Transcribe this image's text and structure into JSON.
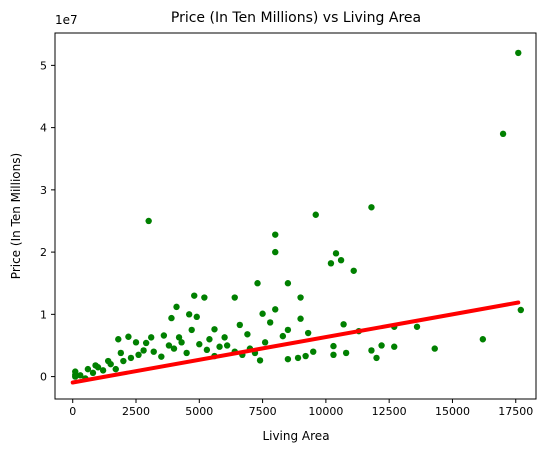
{
  "chart_data": {
    "type": "scatter",
    "title": "Price (In Ten Millions) vs Living Area",
    "xlabel": "Living Area",
    "ylabel": "Price (In Ten Millions)",
    "y_offset_label": "1e7",
    "xlim": [
      -700,
      18300
    ],
    "ylim": [
      -3.6,
      55.2
    ],
    "y_scale_note": "y values in units of 1e7",
    "xticks": [
      0,
      2500,
      5000,
      7500,
      10000,
      12500,
      15000,
      17500
    ],
    "xtick_labels": [
      "0",
      "2500",
      "5000",
      "7500",
      "10000",
      "12500",
      "15000",
      "17500"
    ],
    "yticks": [
      0,
      10,
      20,
      30,
      40,
      50
    ],
    "ytick_labels": [
      "0",
      "1",
      "2",
      "3",
      "4",
      "5"
    ],
    "grid": false,
    "colors": {
      "points": "#008000",
      "fit_line": "#ff0000"
    },
    "fit_line": {
      "x": [
        0,
        17600
      ],
      "y": [
        -0.95,
        11.9
      ]
    },
    "points": [
      [
        17600,
        52.0
      ],
      [
        17000,
        39.0
      ],
      [
        11800,
        27.2
      ],
      [
        9600,
        26.0
      ],
      [
        3000,
        25.0
      ],
      [
        8000,
        22.8
      ],
      [
        8000,
        20.0
      ],
      [
        10400,
        19.8
      ],
      [
        10200,
        18.2
      ],
      [
        10600,
        18.7
      ],
      [
        11100,
        17.0
      ],
      [
        7300,
        15.0
      ],
      [
        8500,
        15.0
      ],
      [
        4800,
        13.0
      ],
      [
        5200,
        12.7
      ],
      [
        6400,
        12.7
      ],
      [
        9000,
        12.7
      ],
      [
        4100,
        11.2
      ],
      [
        8000,
        10.8
      ],
      [
        7500,
        10.1
      ],
      [
        17700,
        10.7
      ],
      [
        4600,
        10.0
      ],
      [
        4900,
        9.6
      ],
      [
        3900,
        9.4
      ],
      [
        9000,
        9.3
      ],
      [
        7800,
        8.7
      ],
      [
        6600,
        8.3
      ],
      [
        5600,
        7.6
      ],
      [
        8500,
        7.5
      ],
      [
        4700,
        7.5
      ],
      [
        9300,
        7.0
      ],
      [
        10700,
        8.4
      ],
      [
        12700,
        8.0
      ],
      [
        13600,
        8.0
      ],
      [
        11300,
        7.3
      ],
      [
        8300,
        6.5
      ],
      [
        2200,
        6.4
      ],
      [
        3100,
        6.3
      ],
      [
        1800,
        6.0
      ],
      [
        12200,
        5.0
      ],
      [
        10300,
        4.9
      ],
      [
        11800,
        4.2
      ],
      [
        12000,
        3.0
      ],
      [
        12700,
        4.8
      ],
      [
        14300,
        4.5
      ],
      [
        16200,
        6.0
      ],
      [
        10300,
        3.5
      ],
      [
        9200,
        3.3
      ],
      [
        8900,
        3.0
      ],
      [
        8500,
        2.8
      ],
      [
        7400,
        2.6
      ],
      [
        10800,
        3.8
      ],
      [
        9500,
        4.0
      ],
      [
        100,
        0.8
      ],
      [
        100,
        0.3
      ],
      [
        100,
        0.0
      ],
      [
        300,
        0.2
      ],
      [
        500,
        -0.3
      ],
      [
        800,
        0.6
      ],
      [
        1000,
        1.5
      ],
      [
        1200,
        1.0
      ],
      [
        1500,
        2.0
      ],
      [
        1700,
        1.2
      ],
      [
        2000,
        2.5
      ],
      [
        2300,
        3.0
      ],
      [
        2600,
        3.5
      ],
      [
        2800,
        4.2
      ],
      [
        3200,
        4.0
      ],
      [
        3500,
        3.2
      ],
      [
        3800,
        5.0
      ],
      [
        4000,
        4.5
      ],
      [
        4300,
        5.5
      ],
      [
        4500,
        3.8
      ],
      [
        5000,
        5.2
      ],
      [
        5300,
        4.3
      ],
      [
        5600,
        3.3
      ],
      [
        5800,
        4.8
      ],
      [
        6100,
        5.0
      ],
      [
        6400,
        4.0
      ],
      [
        6700,
        3.5
      ],
      [
        7000,
        4.5
      ],
      [
        7200,
        3.8
      ],
      [
        7600,
        5.5
      ],
      [
        6900,
        6.8
      ],
      [
        6000,
        6.3
      ],
      [
        5400,
        6.0
      ],
      [
        3600,
        6.6
      ],
      [
        2900,
        5.4
      ],
      [
        2500,
        5.5
      ],
      [
        4200,
        6.3
      ],
      [
        1900,
        3.8
      ],
      [
        1400,
        2.5
      ],
      [
        900,
        1.8
      ],
      [
        600,
        1.2
      ]
    ]
  }
}
